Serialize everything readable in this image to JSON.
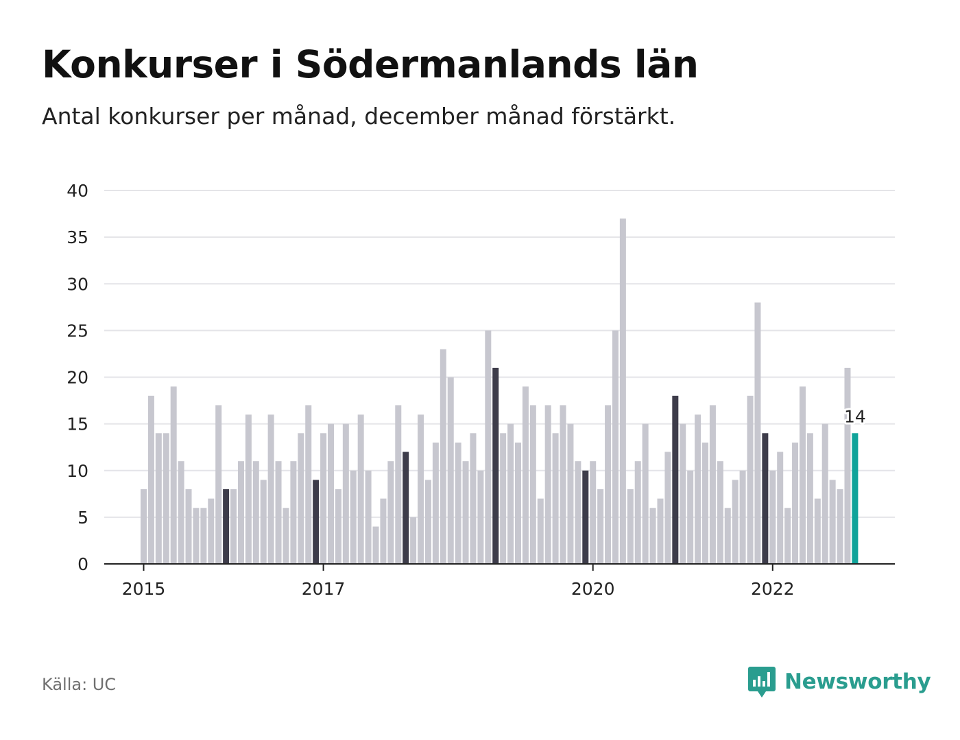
{
  "title": "Konkurser i Södermanlands län",
  "subtitle": "Antal konkurser per månad, december månad förstärkt.",
  "source": "Källa: UC",
  "brand": "Newsworthy",
  "colors": {
    "bar": "#c7c7cf",
    "december_bar": "#3d3c4a",
    "highlight_bar": "#10a39a",
    "gridline": "#e4e4e8",
    "axis": "#222222",
    "brand": "#2a9d8f"
  },
  "chart_data": {
    "type": "bar",
    "title": "Konkurser i Södermanlands län",
    "subtitle": "Antal konkurser per månad, december månad förstärkt.",
    "xlabel": "",
    "ylabel": "",
    "ylim": [
      0,
      40
    ],
    "yticks": [
      0,
      5,
      10,
      15,
      20,
      25,
      30,
      35,
      40
    ],
    "start": "2015-01",
    "xticks": [
      "2015",
      "2017",
      "2020",
      "2022"
    ],
    "grid": true,
    "highlight_label": "14",
    "values": [
      8,
      18,
      14,
      14,
      19,
      11,
      8,
      6,
      6,
      7,
      17,
      8,
      8,
      11,
      16,
      11,
      9,
      16,
      11,
      6,
      11,
      14,
      17,
      9,
      14,
      15,
      8,
      15,
      10,
      16,
      10,
      4,
      7,
      11,
      17,
      12,
      5,
      16,
      9,
      13,
      23,
      20,
      13,
      11,
      14,
      10,
      25,
      21,
      14,
      15,
      13,
      19,
      17,
      7,
      17,
      14,
      17,
      15,
      11,
      10,
      11,
      8,
      17,
      25,
      37,
      8,
      11,
      15,
      6,
      7,
      12,
      18,
      15,
      10,
      16,
      13,
      17,
      11,
      6,
      9,
      10,
      18,
      28,
      14,
      10,
      12,
      6,
      13,
      19,
      14,
      7,
      15,
      9,
      8,
      21,
      14
    ]
  }
}
